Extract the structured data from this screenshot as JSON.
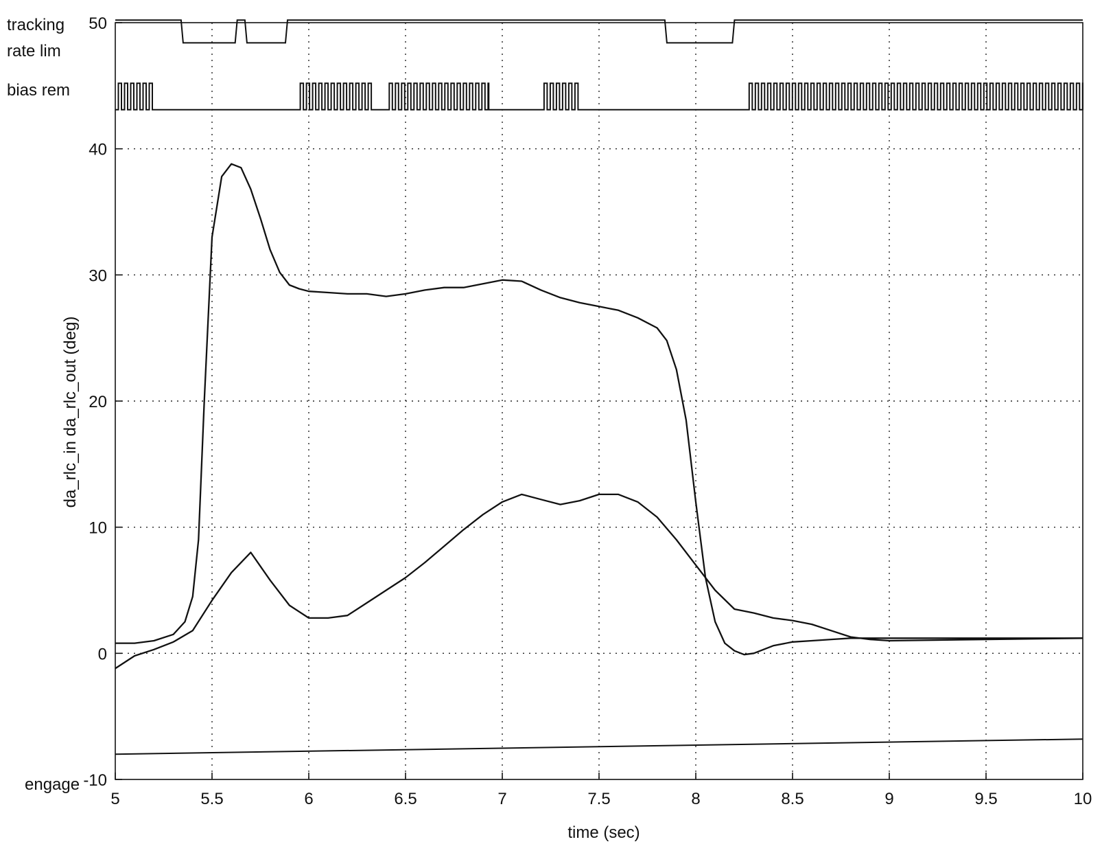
{
  "chart_data": {
    "type": "line",
    "xlabel": "time (sec)",
    "ylabel": "da_rlc_in da_rlc_out (deg)",
    "xlim": [
      5,
      10
    ],
    "ylim": [
      -10,
      50
    ],
    "xticks": [
      "5",
      "5.5",
      "6",
      "6.5",
      "7",
      "7.5",
      "8",
      "8.5",
      "9",
      "9.5",
      "10"
    ],
    "yticks": [
      "-10",
      "0",
      "10",
      "20",
      "30",
      "40",
      "50"
    ],
    "grid": true,
    "discrete_labels": [
      "tracking",
      "rate lim",
      "bias rem",
      "engage"
    ],
    "series": [
      {
        "x": [
          5.0,
          5.1,
          5.2,
          5.3,
          5.36,
          5.4,
          5.43,
          5.46,
          5.5,
          5.55,
          5.6,
          5.65,
          5.7,
          5.75,
          5.8,
          5.85,
          5.9,
          5.95,
          6.0,
          6.1,
          6.2,
          6.3,
          6.4,
          6.5,
          6.6,
          6.7,
          6.8,
          6.9,
          7.0,
          7.1,
          7.2,
          7.3,
          7.4,
          7.5,
          7.6,
          7.7,
          7.8,
          7.85,
          7.9,
          7.95,
          8.0,
          8.05,
          8.1,
          8.15,
          8.2,
          8.25,
          8.3,
          8.35,
          8.4,
          8.5,
          8.6,
          8.7,
          8.8,
          9.0,
          9.5,
          10.0
        ],
        "y": [
          0.8,
          0.8,
          1.0,
          1.5,
          2.5,
          4.5,
          9.0,
          20.0,
          33.0,
          37.8,
          38.8,
          38.5,
          36.8,
          34.5,
          32.0,
          30.2,
          29.2,
          28.9,
          28.7,
          28.6,
          28.5,
          28.5,
          28.3,
          28.5,
          28.8,
          29.0,
          29.0,
          29.3,
          29.6,
          29.5,
          28.8,
          28.2,
          27.8,
          27.5,
          27.2,
          26.6,
          25.8,
          24.8,
          22.5,
          18.5,
          12.0,
          6.0,
          2.5,
          0.8,
          0.2,
          -0.1,
          0.0,
          0.3,
          0.6,
          0.9,
          1.0,
          1.1,
          1.2,
          1.2,
          1.2,
          1.2
        ]
      },
      {
        "x": [
          5.0,
          5.1,
          5.2,
          5.3,
          5.4,
          5.5,
          5.6,
          5.7,
          5.8,
          5.9,
          6.0,
          6.1,
          6.2,
          6.3,
          6.4,
          6.5,
          6.6,
          6.7,
          6.8,
          6.9,
          7.0,
          7.1,
          7.2,
          7.3,
          7.4,
          7.5,
          7.6,
          7.7,
          7.8,
          7.9,
          8.0,
          8.1,
          8.2,
          8.3,
          8.4,
          8.5,
          8.6,
          8.7,
          8.8,
          8.9,
          9.0,
          9.5,
          10.0
        ],
        "y": [
          -1.2,
          -0.2,
          0.3,
          0.9,
          1.8,
          4.2,
          6.4,
          8.0,
          5.8,
          3.8,
          2.8,
          2.8,
          3.0,
          4.0,
          5.0,
          6.0,
          7.2,
          8.5,
          9.8,
          11.0,
          12.0,
          12.6,
          12.2,
          11.8,
          12.1,
          12.6,
          12.6,
          12.0,
          10.8,
          9.0,
          7.0,
          5.0,
          3.5,
          3.2,
          2.8,
          2.6,
          2.3,
          1.8,
          1.3,
          1.1,
          1.0,
          1.1,
          1.2
        ]
      }
    ],
    "discrete_traces": [
      {
        "label": "tracking / rate lim",
        "high_value": 50.2,
        "low_value": 48.4,
        "low_intervals": [
          [
            5.34,
            5.63
          ],
          [
            5.67,
            5.89
          ],
          [
            7.84,
            8.2
          ]
        ]
      },
      {
        "label": "bias rem",
        "high_value": 45.2,
        "low_value": 43.1,
        "active_intervals": [
          [
            5.0,
            5.2
          ],
          [
            5.94,
            6.33
          ],
          [
            6.4,
            6.93
          ],
          [
            7.2,
            7.4
          ],
          [
            8.26,
            10.0
          ]
        ]
      },
      {
        "label": "engage",
        "y_start": -8.0,
        "y_end": -6.8
      }
    ]
  }
}
